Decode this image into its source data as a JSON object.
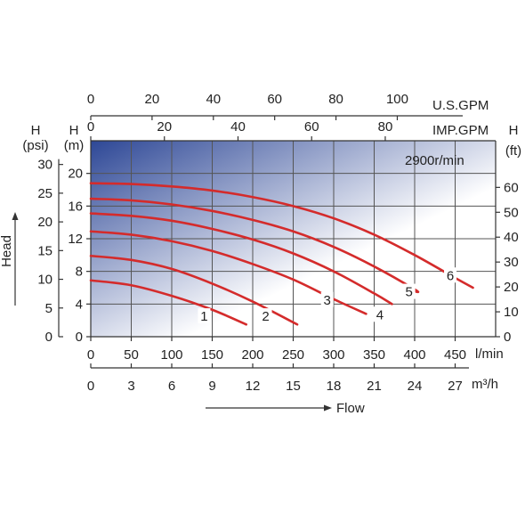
{
  "chart_data": {
    "type": "line",
    "speed_label": "2900r/min",
    "ylabel": "Head",
    "xlabel": "Flow",
    "x_axes": {
      "lmin": {
        "unit": "l/min",
        "ticks": [
          0,
          50,
          100,
          150,
          200,
          250,
          300,
          350,
          400,
          450
        ]
      },
      "m3h": {
        "unit": "m³/h",
        "ticks": [
          0,
          3,
          6,
          9,
          12,
          15,
          18,
          21,
          24,
          27
        ]
      },
      "usgpm": {
        "unit": "U.S.GPM",
        "ticks": [
          0,
          20,
          40,
          60,
          80,
          100
        ]
      },
      "impgpm": {
        "unit": "IMP.GPM",
        "ticks": [
          0,
          20,
          40,
          60,
          80
        ]
      }
    },
    "y_axes": {
      "m": {
        "unit_line1": "H",
        "unit_line2": "(m)",
        "ticks": [
          0,
          4,
          8,
          12,
          16,
          20
        ]
      },
      "psi": {
        "unit_line1": "H",
        "unit_line2": "(psi)",
        "ticks": [
          0,
          5,
          10,
          15,
          20,
          25,
          30
        ]
      },
      "ft": {
        "unit_line1": "H",
        "unit_line2": "(ft)",
        "ticks": [
          0,
          10,
          20,
          30,
          40,
          50,
          60
        ]
      }
    },
    "xlim": [
      0,
      500
    ],
    "ylim": [
      0,
      24
    ],
    "grid": true,
    "curve_color": "#d42b2b",
    "gradient_colors": [
      "#2d4796",
      "#ffffff"
    ],
    "series": [
      {
        "name": "1",
        "label_at": [
          140,
          2.5
        ],
        "points": [
          [
            0,
            6.9
          ],
          [
            50,
            6.3
          ],
          [
            100,
            5.0
          ],
          [
            150,
            3.3
          ],
          [
            192,
            1.5
          ]
        ]
      },
      {
        "name": "2",
        "label_at": [
          216,
          2.5
        ],
        "points": [
          [
            0,
            9.9
          ],
          [
            50,
            9.4
          ],
          [
            100,
            8.3
          ],
          [
            150,
            6.5
          ],
          [
            200,
            4.3
          ],
          [
            255,
            1.5
          ]
        ]
      },
      {
        "name": "3",
        "label_at": [
          292,
          4.5
        ],
        "points": [
          [
            0,
            12.9
          ],
          [
            50,
            12.5
          ],
          [
            100,
            11.7
          ],
          [
            150,
            10.5
          ],
          [
            200,
            8.9
          ],
          [
            250,
            7.0
          ],
          [
            300,
            4.6
          ],
          [
            340,
            2.8
          ]
        ]
      },
      {
        "name": "4",
        "label_at": [
          357,
          2.7
        ],
        "points": [
          [
            0,
            15.1
          ],
          [
            50,
            14.8
          ],
          [
            100,
            14.2
          ],
          [
            150,
            13.2
          ],
          [
            200,
            11.9
          ],
          [
            250,
            10.2
          ],
          [
            300,
            8.0
          ],
          [
            350,
            5.3
          ],
          [
            372,
            4.0
          ]
        ]
      },
      {
        "name": "5",
        "label_at": [
          393,
          5.5
        ],
        "points": [
          [
            0,
            16.9
          ],
          [
            50,
            16.7
          ],
          [
            100,
            16.2
          ],
          [
            150,
            15.4
          ],
          [
            200,
            14.3
          ],
          [
            250,
            12.9
          ],
          [
            300,
            11.0
          ],
          [
            350,
            8.6
          ],
          [
            400,
            5.8
          ],
          [
            402,
            5.5
          ]
        ]
      },
      {
        "name": "6",
        "label_at": [
          444,
          7.5
        ],
        "points": [
          [
            0,
            18.8
          ],
          [
            50,
            18.7
          ],
          [
            100,
            18.4
          ],
          [
            150,
            17.9
          ],
          [
            200,
            17.1
          ],
          [
            250,
            16.0
          ],
          [
            300,
            14.5
          ],
          [
            350,
            12.5
          ],
          [
            400,
            10.0
          ],
          [
            450,
            7.2
          ],
          [
            472,
            6.0
          ]
        ]
      }
    ]
  }
}
